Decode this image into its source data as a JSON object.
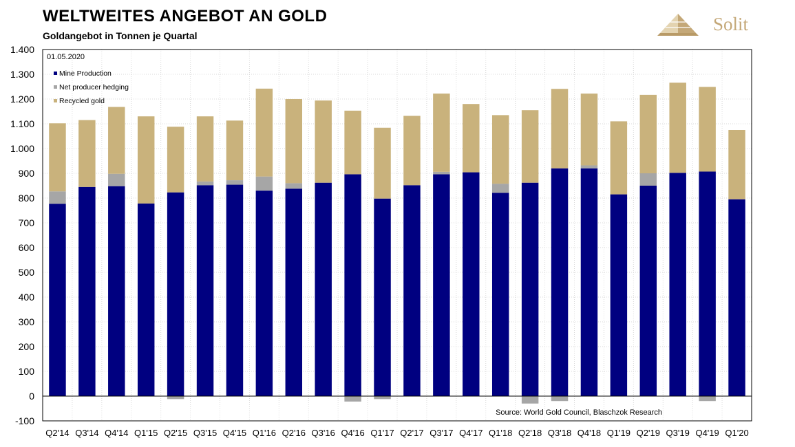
{
  "header": {
    "title": "WELTWEITES ANGEBOT AN GOLD",
    "subtitle": "Goldangebot in Tonnen je Quartal"
  },
  "logo": {
    "text": "Solit",
    "icon": "pyramid-icon",
    "color": "#c4a878"
  },
  "chart_data": {
    "type": "bar",
    "stacked": true,
    "date_label": "01.05.2020",
    "source": "Source: World Gold Council, Blaschzok Research",
    "ylim": [
      -100,
      1400
    ],
    "yticks": [
      -100,
      0,
      100,
      200,
      300,
      400,
      500,
      600,
      700,
      800,
      900,
      1000,
      1100,
      1200,
      1300,
      1400
    ],
    "ytick_labels": [
      "-100",
      "0",
      "100",
      "200",
      "300",
      "400",
      "500",
      "600",
      "700",
      "800",
      "900",
      "1.000",
      "1.100",
      "1.200",
      "1.300",
      "1.400"
    ],
    "grid": true,
    "legend_position": "top-left",
    "categories": [
      "Q2'14",
      "Q3'14",
      "Q4'14",
      "Q1'15",
      "Q2'15",
      "Q3'15",
      "Q4'15",
      "Q1'16",
      "Q2'16",
      "Q3'16",
      "Q4'16",
      "Q1'17",
      "Q2'17",
      "Q3'17",
      "Q4'17",
      "Q1'18",
      "Q2'18",
      "Q3'18",
      "Q4'18",
      "Q1'19",
      "Q2'19",
      "Q3'19",
      "Q4'19",
      "Q1'20"
    ],
    "series": [
      {
        "name": "Mine Production",
        "color": "#000080",
        "values": [
          777,
          845,
          848,
          778,
          823,
          852,
          854,
          830,
          838,
          862,
          896,
          798,
          852,
          896,
          904,
          821,
          862,
          920,
          920,
          815,
          850,
          902,
          907,
          795
        ]
      },
      {
        "name": "Net producer hedging",
        "color": "#a6a6a6",
        "values": [
          50,
          0,
          50,
          0,
          -12,
          15,
          18,
          57,
          22,
          0,
          -22,
          -12,
          0,
          10,
          0,
          37,
          -30,
          -20,
          12,
          0,
          50,
          0,
          -20,
          0
        ]
      },
      {
        "name": "Recycled gold",
        "color": "#c9b27c",
        "values": [
          275,
          270,
          270,
          352,
          265,
          263,
          241,
          355,
          340,
          332,
          257,
          286,
          280,
          316,
          276,
          277,
          293,
          321,
          290,
          295,
          317,
          364,
          342,
          280
        ]
      }
    ]
  }
}
